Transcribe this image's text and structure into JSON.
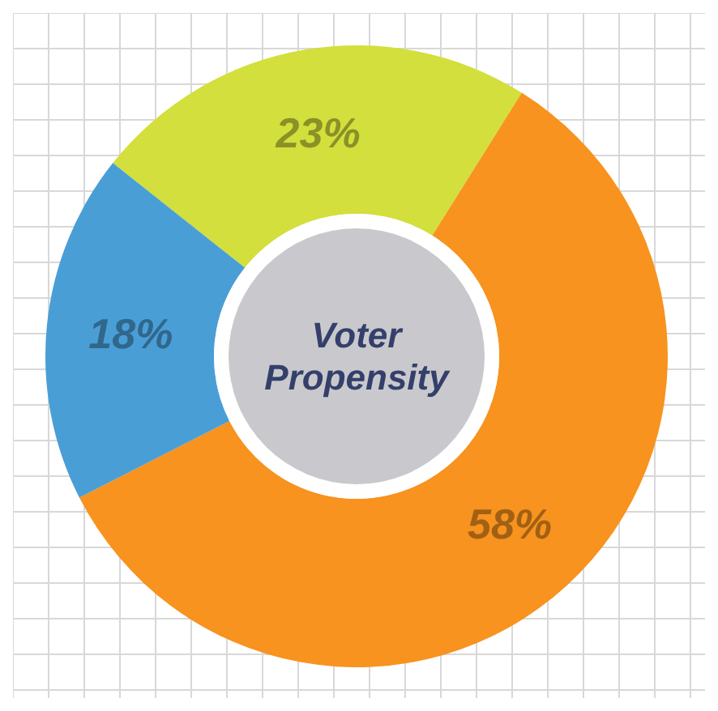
{
  "chart_data": {
    "type": "donut",
    "title": "Voter Propensity",
    "categories": [
      null,
      null,
      null
    ],
    "values": [
      23,
      58,
      18
    ],
    "colors": [
      "#d3df3c",
      "#f7931e",
      "#4a9ed6"
    ],
    "value_labels": [
      "23%",
      "58%",
      "18%"
    ]
  }
}
